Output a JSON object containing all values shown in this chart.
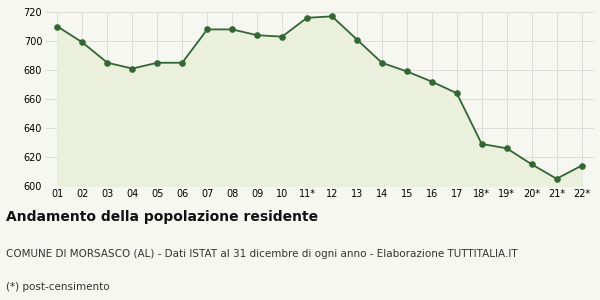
{
  "x_labels": [
    "01",
    "02",
    "03",
    "04",
    "05",
    "06",
    "07",
    "08",
    "09",
    "10",
    "11*",
    "12",
    "13",
    "14",
    "15",
    "16",
    "17",
    "18*",
    "19*",
    "20*",
    "21*",
    "22*"
  ],
  "y_values": [
    710,
    699,
    685,
    681,
    685,
    685,
    708,
    708,
    704,
    703,
    716,
    717,
    701,
    685,
    679,
    672,
    664,
    629,
    626,
    615,
    605,
    614
  ],
  "line_color": "#336633",
  "fill_color": "#eaf0dc",
  "marker_color": "#336633",
  "bg_color": "#f7f7f2",
  "grid_color": "#d8d8d8",
  "ylim": [
    600,
    720
  ],
  "yticks": [
    600,
    620,
    640,
    660,
    680,
    700,
    720
  ],
  "title": "Andamento della popolazione residente",
  "subtitle": "COMUNE DI MORSASCO (AL) - Dati ISTAT al 31 dicembre di ogni anno - Elaborazione TUTTITALIA.IT",
  "footnote": "(*) post-censimento",
  "title_fontsize": 10,
  "subtitle_fontsize": 7.5,
  "footnote_fontsize": 7.5
}
